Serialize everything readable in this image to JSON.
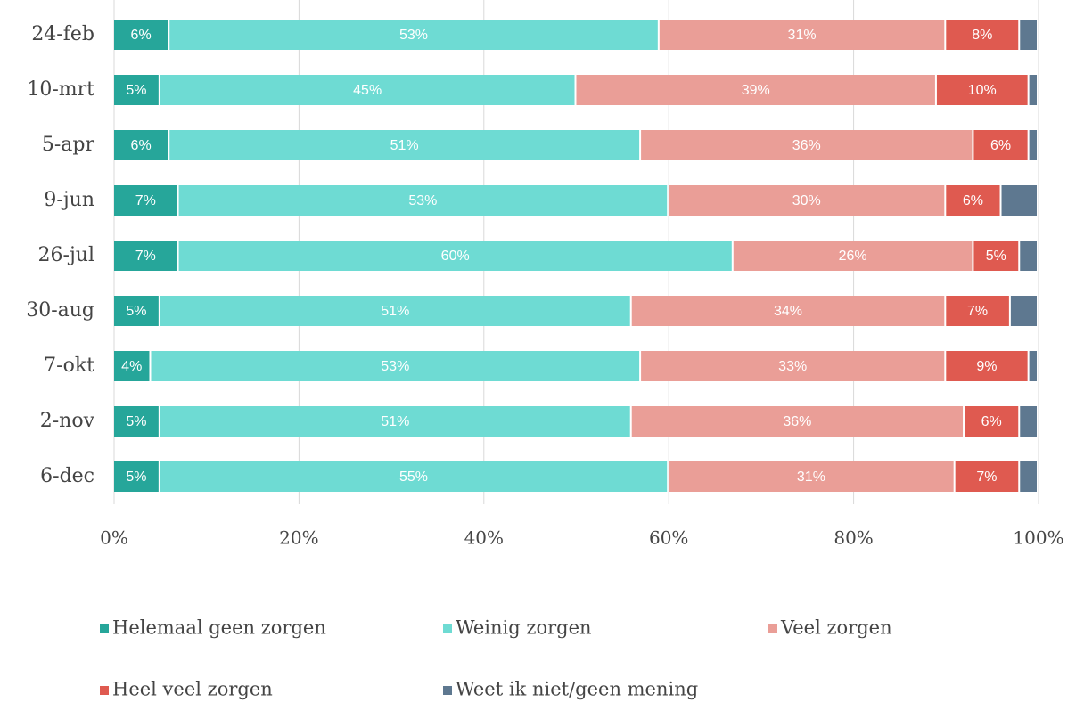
{
  "chart_data": {
    "type": "stacked-barh",
    "categories": [
      "24-feb",
      "10-mrt",
      "5-apr",
      "9-jun",
      "26-jul",
      "30-aug",
      "7-okt",
      "2-nov",
      "6-dec"
    ],
    "series": [
      {
        "name": "Helemaal geen zorgen",
        "color": "#26a69a",
        "values": [
          6,
          5,
          6,
          7,
          7,
          5,
          4,
          5,
          5
        ],
        "value_labels": [
          "6%",
          "5%",
          "6%",
          "7%",
          "7%",
          "5%",
          "4%",
          "5%",
          "5%"
        ]
      },
      {
        "name": "Weinig zorgen",
        "color": "#6edbd3",
        "values": [
          53,
          45,
          51,
          53,
          60,
          51,
          53,
          51,
          55
        ],
        "value_labels": [
          "53%",
          "45%",
          "51%",
          "53%",
          "60%",
          "51%",
          "53%",
          "51%",
          "55%"
        ]
      },
      {
        "name": "Veel zorgen",
        "color": "#ea9e97",
        "values": [
          31,
          39,
          36,
          30,
          26,
          34,
          33,
          36,
          31
        ],
        "value_labels": [
          "31%",
          "39%",
          "36%",
          "30%",
          "26%",
          "34%",
          "33%",
          "36%",
          "31%"
        ]
      },
      {
        "name": "Heel veel zorgen",
        "color": "#df5a50",
        "values": [
          8,
          10,
          6,
          6,
          5,
          7,
          9,
          6,
          7
        ],
        "value_labels": [
          "8%",
          "10%",
          "6%",
          "6%",
          "5%",
          "7%",
          "9%",
          "6%",
          "7%"
        ]
      },
      {
        "name": "Weet ik niet/geen mening",
        "color": "#5e7890",
        "values": [
          2,
          1,
          1,
          4,
          2,
          3,
          1,
          2,
          2
        ]
      }
    ],
    "xlim": [
      0,
      100
    ],
    "xticks": [
      {
        "value": 0,
        "label": "0%"
      },
      {
        "value": 20,
        "label": "20%"
      },
      {
        "value": 40,
        "label": "40%"
      },
      {
        "value": 60,
        "label": "60%"
      },
      {
        "value": 80,
        "label": "80%"
      },
      {
        "value": 100,
        "label": "100%"
      }
    ],
    "grid": true
  }
}
